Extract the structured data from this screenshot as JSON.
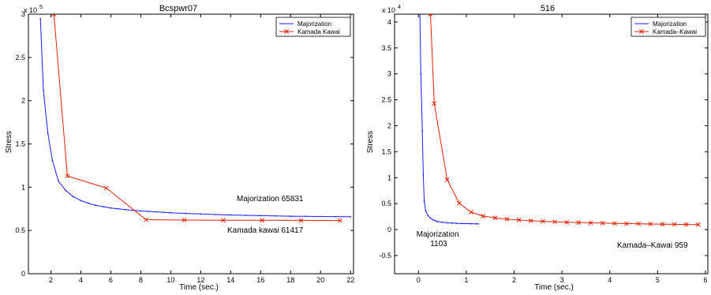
{
  "chart_data": [
    {
      "type": "line",
      "title": "Bcspwr07",
      "xlabel": "Time (sec.)",
      "ylabel": "Stress",
      "exponent_label": "x 10^5",
      "xlim": [
        0.5,
        22.2
      ],
      "ylim": [
        0,
        3
      ],
      "xticks": [
        2,
        4,
        6,
        8,
        10,
        12,
        14,
        16,
        18,
        20,
        22
      ],
      "yticks": [
        0,
        0.5,
        1,
        1.5,
        2,
        2.5,
        3
      ],
      "grid": false,
      "legend_position": "top-right",
      "series": [
        {
          "name": "Majorization",
          "color": "#1a1aff",
          "marker": "dot",
          "x": [
            1.3,
            1.5,
            1.8,
            2.1,
            2.5,
            3.0,
            3.5,
            4.0,
            4.5,
            5.0,
            5.5,
            6.0,
            6.5,
            7.0,
            7.5,
            8.0,
            8.5,
            9.0,
            9.5,
            10.0,
            11.0,
            12.0,
            13.0,
            14.0,
            15.0,
            16.0,
            17.0,
            18.0,
            19.0,
            20.0,
            21.0,
            22.0
          ],
          "values": [
            2.95,
            2.12,
            1.62,
            1.31,
            1.07,
            0.96,
            0.89,
            0.845,
            0.815,
            0.79,
            0.775,
            0.76,
            0.75,
            0.74,
            0.733,
            0.725,
            0.72,
            0.715,
            0.71,
            0.705,
            0.697,
            0.69,
            0.684,
            0.679,
            0.675,
            0.671,
            0.668,
            0.665,
            0.663,
            0.661,
            0.66,
            0.658
          ]
        },
        {
          "name": "Kamada Kawai",
          "color": "#e82000",
          "marker": "x",
          "x": [
            2.2,
            3.1,
            5.7,
            8.35,
            10.9,
            13.5,
            16.1,
            18.7,
            21.3
          ],
          "values": [
            3.0,
            1.13,
            0.99,
            0.625,
            0.62,
            0.618,
            0.617,
            0.616,
            0.615
          ]
        }
      ],
      "annotations": [
        "Majorization 65831",
        "Kamada kawai 61417"
      ]
    },
    {
      "type": "line",
      "title": "516",
      "xlabel": "Time (sec.)",
      "ylabel": "Stress",
      "exponent_label": "x 10^4",
      "xlim": [
        -0.5,
        6.05
      ],
      "ylim": [
        -0.85,
        4.15
      ],
      "xticks": [
        0,
        1,
        2,
        3,
        4,
        5,
        6
      ],
      "yticks": [
        -0.5,
        0,
        0.5,
        1,
        1.5,
        2,
        2.5,
        3,
        3.5,
        4
      ],
      "grid": false,
      "legend_position": "top-right",
      "series": [
        {
          "name": "Majorization",
          "color": "#1a1aff",
          "marker": "dot",
          "x": [
            0.03,
            0.05,
            0.08,
            0.1,
            0.12,
            0.15,
            0.2,
            0.25,
            0.3,
            0.35,
            0.4,
            0.5,
            0.6,
            0.7,
            0.8,
            0.9,
            1.0,
            1.1,
            1.2,
            1.25
          ],
          "values": [
            4.15,
            3.0,
            1.9,
            1.05,
            0.55,
            0.36,
            0.27,
            0.22,
            0.19,
            0.17,
            0.155,
            0.14,
            0.13,
            0.125,
            0.12,
            0.117,
            0.115,
            0.113,
            0.111,
            0.11
          ]
        },
        {
          "name": "Kamada–Kawai",
          "color": "#e82000",
          "marker": "x",
          "x": [
            0.25,
            0.33,
            0.6,
            0.85,
            1.1,
            1.35,
            1.6,
            1.85,
            2.1,
            2.35,
            2.6,
            2.85,
            3.1,
            3.35,
            3.6,
            3.85,
            4.1,
            4.35,
            4.6,
            4.85,
            5.1,
            5.35,
            5.6,
            5.85
          ],
          "values": [
            4.15,
            2.43,
            0.96,
            0.51,
            0.335,
            0.26,
            0.225,
            0.2,
            0.185,
            0.17,
            0.16,
            0.15,
            0.142,
            0.136,
            0.13,
            0.125,
            0.12,
            0.116,
            0.112,
            0.108,
            0.104,
            0.101,
            0.098,
            0.096
          ]
        }
      ],
      "annotations": [
        "Majorization\n1103",
        "Kamada–Kawai 959"
      ]
    }
  ]
}
